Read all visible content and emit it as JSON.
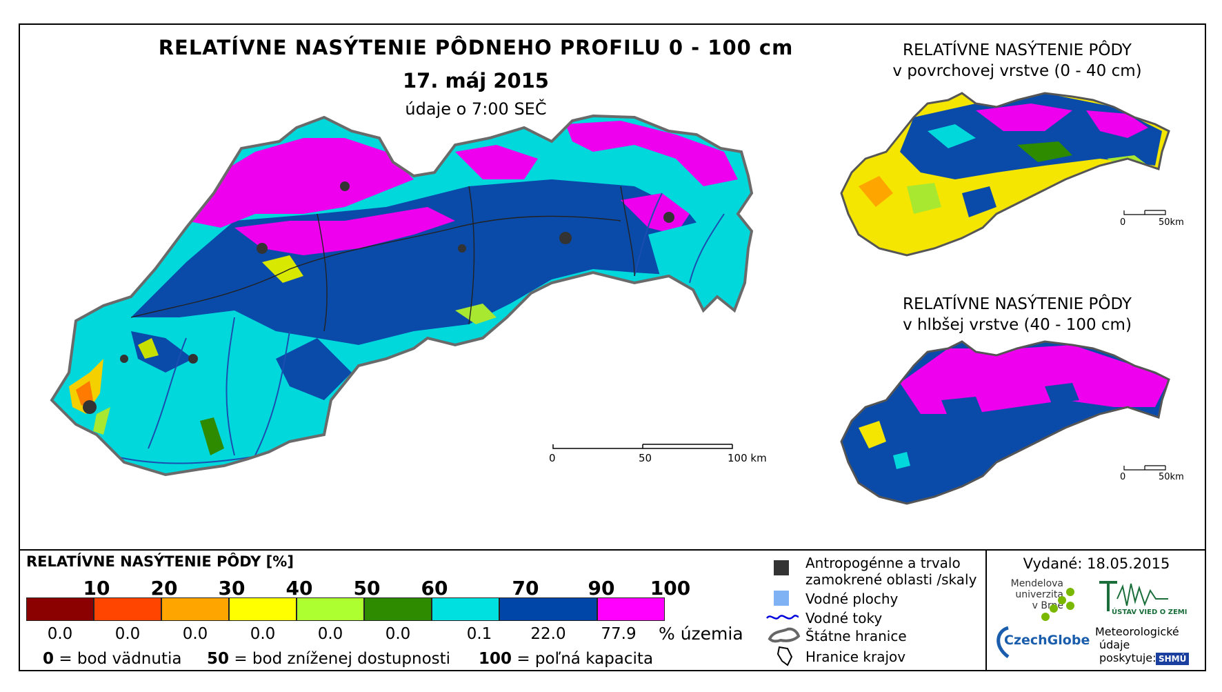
{
  "title": {
    "main": "RELATÍVNE NASÝTENIE PÔDNEHO PROFILU 0 - 100 cm",
    "date": "17. máj 2015",
    "time": "údaje o 7:00 SEČ"
  },
  "insets": {
    "top": {
      "line1": "RELATÍVNE NASÝTENIE PÔDY",
      "line2": "v povrchovej vrstve (0 - 40 cm)",
      "scale_zero": "0",
      "scale_end": "50km"
    },
    "bottom": {
      "line1": "RELATÍVNE NASÝTENIE PÔDY",
      "line2": "v hlbšej vrstve (40 - 100 cm)",
      "scale_zero": "0",
      "scale_end": "50km"
    }
  },
  "main_scale": {
    "zero": "0",
    "mid": "50",
    "end": "100 km"
  },
  "legend": {
    "title": "RELATÍVNE NASÝTENIE PÔDY [%]",
    "ticks": [
      "10",
      "20",
      "30",
      "40",
      "50",
      "60",
      "70",
      "90",
      "100"
    ],
    "colors": [
      "#8b0000",
      "#ff4500",
      "#ffa500",
      "#ffff00",
      "#adff2f",
      "#2e8b00",
      "#00e0e0",
      "#0046a8",
      "#ff00ff"
    ],
    "percentages": [
      "0.0",
      "0.0",
      "0.0",
      "0.0",
      "0.0",
      "0.0",
      "0.1",
      "22.0",
      "77.9"
    ],
    "percent_unit": "% územia",
    "note0_value": "0",
    "note0_text": "= bod vädnutia",
    "note50_value": "50",
    "note50_text": "= bod zníženej dostupnosti",
    "note100_value": "100",
    "note100_text": "= poľná kapacita"
  },
  "symbols": {
    "urban_line1": "Antropogénne a trvalo",
    "urban_line2": "zamokrené oblasti /skaly",
    "water_bodies": "Vodné plochy",
    "rivers": "Vodné toky",
    "state_border": "Štátne hranice",
    "region_border": "Hranice krajov"
  },
  "issued": "Vydané: 18.05.2015",
  "logos": {
    "mendel_line1": "Mendelova",
    "mendel_line2": "univerzita",
    "mendel_line3": "v Brně",
    "czechglobe": "CzechGlobe",
    "uvgz": "ÚSTAV VIED O ZEMI",
    "met_line1": "Meteorologické",
    "met_line2": "údaje",
    "met_line3": "poskytuje:",
    "shmu": "SHMÚ"
  }
}
